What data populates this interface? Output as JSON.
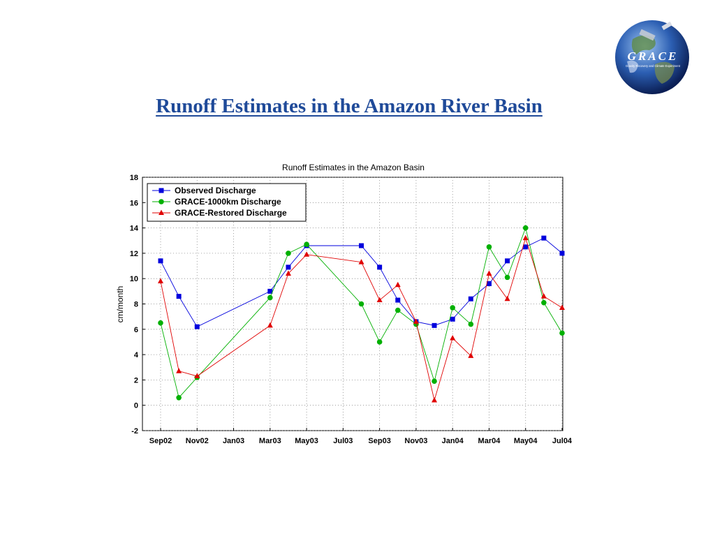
{
  "slide": {
    "title": "Runoff Estimates in the Amazon River Basin",
    "logo_text": "GRACE",
    "logo_subtext": "Gravity Recovery and Climate Experiment"
  },
  "colors": {
    "title": "#1f4a99",
    "observed": "#0000dd",
    "grace_1000km": "#00b000",
    "grace_restored": "#e00000"
  },
  "chart_data": {
    "type": "line",
    "title": "Runoff Estimates in the Amazon Basin",
    "xlabel": "",
    "ylabel": "cm/month",
    "x_tick_labels": [
      "Sep02",
      "Nov02",
      "Jan03",
      "Mar03",
      "May03",
      "Jul03",
      "Sep03",
      "Nov03",
      "Jan04",
      "Mar04",
      "May04",
      "Jul04"
    ],
    "y_ticks": [
      -2,
      0,
      2,
      4,
      6,
      8,
      10,
      12,
      14,
      16,
      18
    ],
    "ylim": [
      -2,
      18
    ],
    "grid": true,
    "legend_position": "top-left",
    "series": [
      {
        "name": "Observed Discharge",
        "color": "#0000dd",
        "marker": "square",
        "points": [
          [
            "Sep02",
            11.4
          ],
          [
            "Oct02",
            8.6
          ],
          [
            "Nov02",
            6.2
          ],
          [
            "Mar03",
            9.0
          ],
          [
            "Apr03",
            10.9
          ],
          [
            "May03",
            12.6
          ],
          [
            "Aug03",
            12.6
          ],
          [
            "Sep03",
            10.9
          ],
          [
            "Oct03",
            8.3
          ],
          [
            "Nov03",
            6.6
          ],
          [
            "Dec03",
            6.3
          ],
          [
            "Jan04",
            6.8
          ],
          [
            "Feb04",
            8.4
          ],
          [
            "Mar04",
            9.6
          ],
          [
            "Apr04",
            11.4
          ],
          [
            "May04",
            12.5
          ],
          [
            "Jun04",
            13.2
          ],
          [
            "Jul04",
            12.0
          ]
        ]
      },
      {
        "name": "GRACE-1000km Discharge",
        "color": "#00b000",
        "marker": "circle",
        "points": [
          [
            "Sep02",
            6.5
          ],
          [
            "Oct02",
            0.6
          ],
          [
            "Nov02",
            2.2
          ],
          [
            "Mar03",
            8.5
          ],
          [
            "Apr03",
            12.0
          ],
          [
            "May03",
            12.7
          ],
          [
            "Aug03",
            8.0
          ],
          [
            "Sep03",
            5.0
          ],
          [
            "Oct03",
            7.5
          ],
          [
            "Nov03",
            6.4
          ],
          [
            "Dec03",
            1.9
          ],
          [
            "Jan04",
            7.7
          ],
          [
            "Feb04",
            6.4
          ],
          [
            "Mar04",
            12.5
          ],
          [
            "Apr04",
            10.1
          ],
          [
            "May04",
            14.0
          ],
          [
            "Jun04",
            8.1
          ],
          [
            "Jul04",
            5.7
          ]
        ]
      },
      {
        "name": "GRACE-Restored Discharge",
        "color": "#e00000",
        "marker": "triangle",
        "points": [
          [
            "Sep02",
            9.8
          ],
          [
            "Oct02",
            2.7
          ],
          [
            "Nov02",
            2.3
          ],
          [
            "Mar03",
            6.3
          ],
          [
            "Apr03",
            10.4
          ],
          [
            "May03",
            11.9
          ],
          [
            "Aug03",
            11.3
          ],
          [
            "Sep03",
            8.3
          ],
          [
            "Oct03",
            9.5
          ],
          [
            "Nov03",
            6.6
          ],
          [
            "Dec03",
            0.4
          ],
          [
            "Jan04",
            5.3
          ],
          [
            "Feb04",
            3.9
          ],
          [
            "Mar04",
            10.4
          ],
          [
            "Apr04",
            8.4
          ],
          [
            "May04",
            13.2
          ],
          [
            "Jun04",
            8.6
          ],
          [
            "Jul04",
            7.7
          ]
        ]
      }
    ]
  }
}
